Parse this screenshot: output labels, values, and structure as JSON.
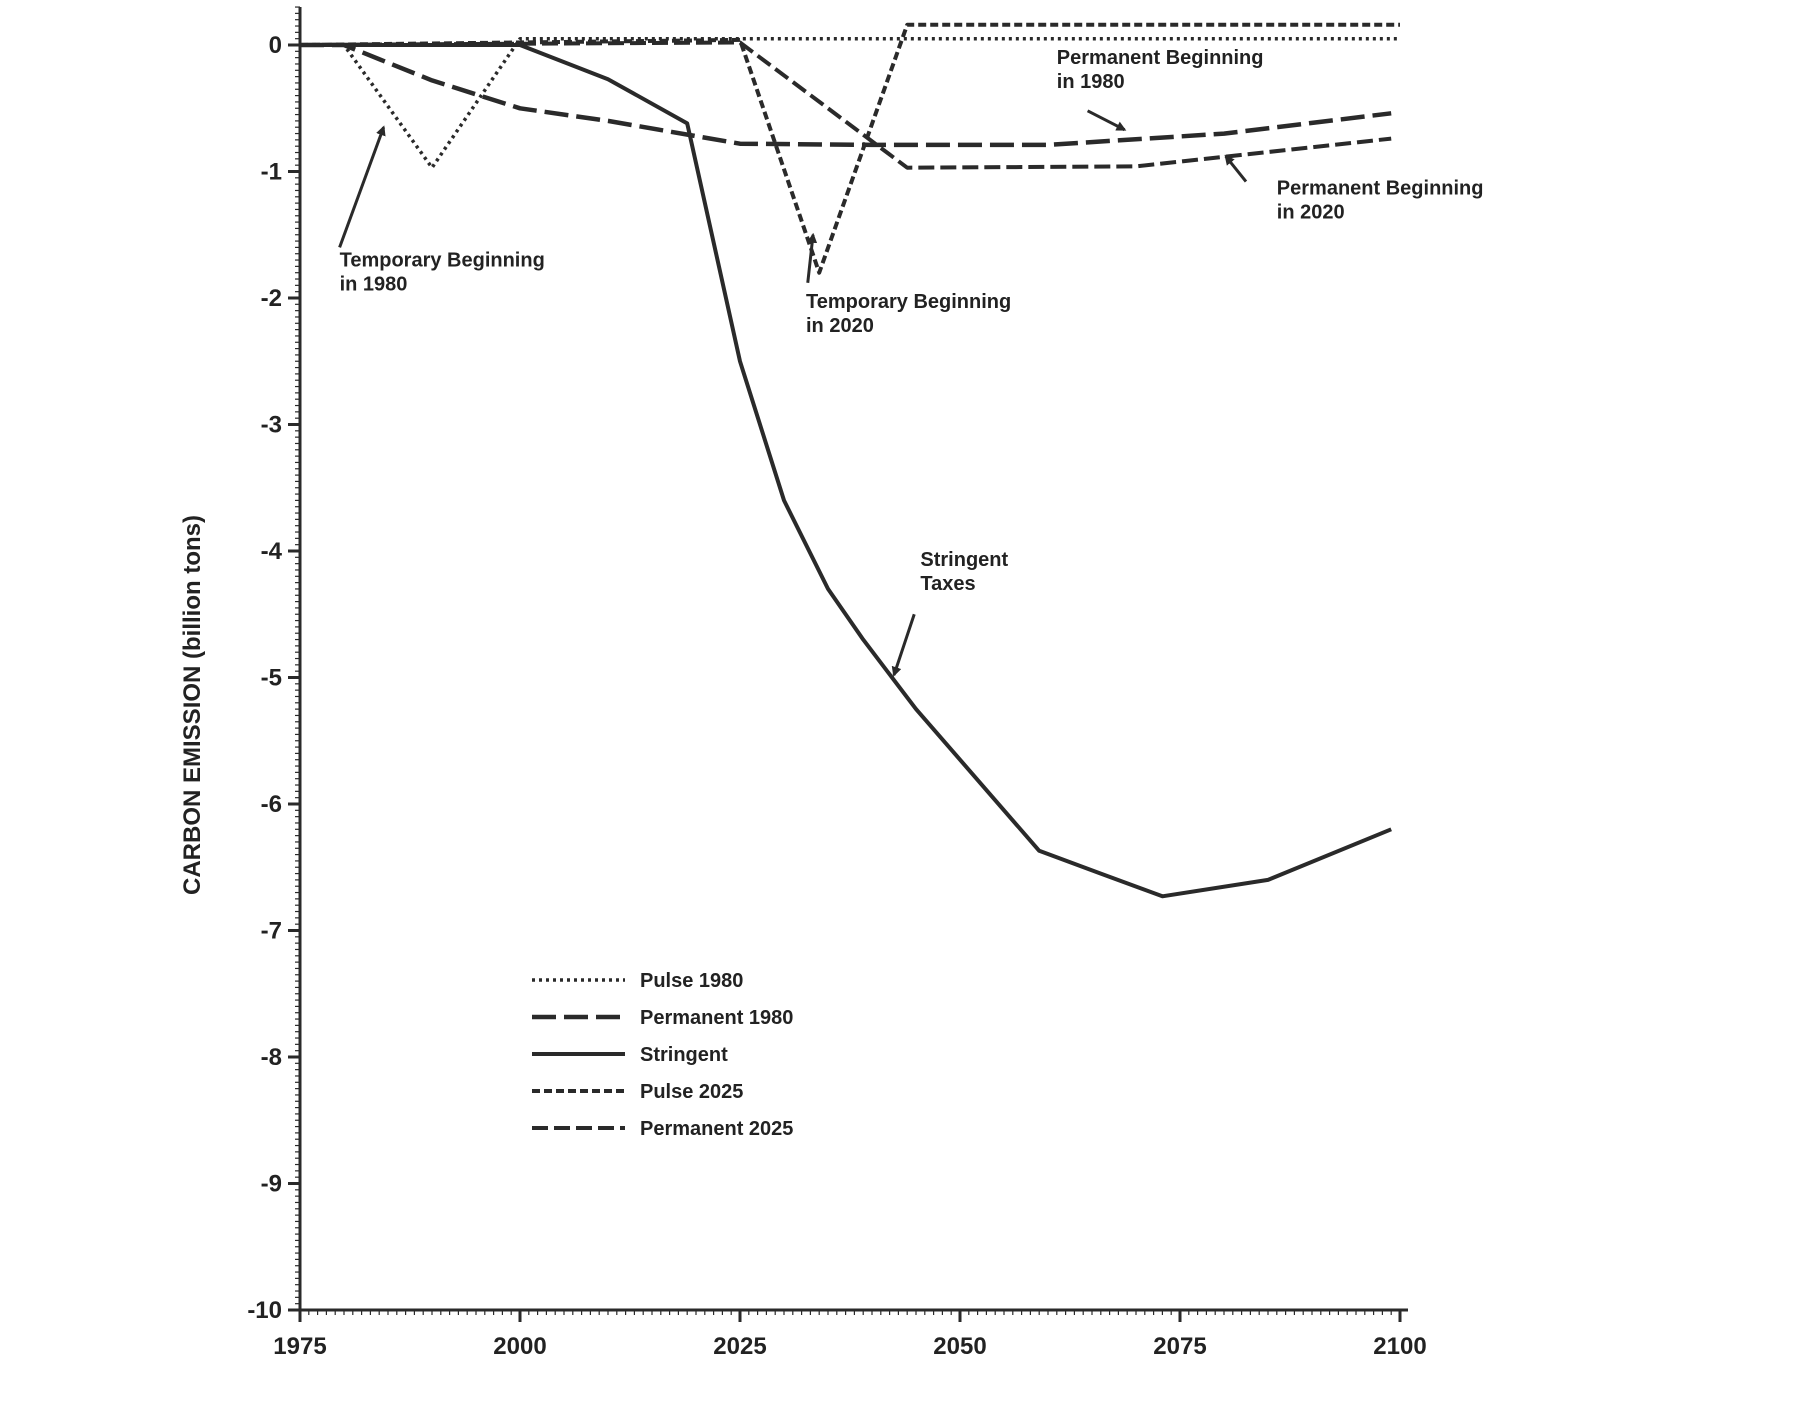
{
  "chart_data": {
    "type": "line",
    "title": "",
    "xlabel": "",
    "ylabel": "CARBON EMISSION (billion tons)",
    "xlim": [
      1975,
      2100
    ],
    "ylim": [
      -10,
      0.3
    ],
    "xticks": [
      1975,
      2000,
      2025,
      2050,
      2075,
      2100
    ],
    "yticks": [
      0,
      -1,
      -2,
      -3,
      -4,
      -5,
      -6,
      -7,
      -8,
      -9,
      -10
    ],
    "grid": false,
    "legend_position": "lower-left",
    "series": [
      {
        "name": "Pulse 1980",
        "style": "dotted",
        "x": [
          1975,
          1980,
          1990,
          2000,
          2100
        ],
        "y": [
          0,
          0,
          -0.97,
          0.05,
          0.05
        ]
      },
      {
        "name": "Permanent 1980",
        "style": "long-dash",
        "x": [
          1975,
          1980,
          1990,
          2000,
          2010,
          2020,
          2025,
          2040,
          2060,
          2080,
          2099
        ],
        "y": [
          0,
          0,
          -0.28,
          -0.5,
          -0.6,
          -0.72,
          -0.78,
          -0.79,
          -0.79,
          -0.7,
          -0.54
        ]
      },
      {
        "name": "Stringent",
        "style": "solid",
        "x": [
          1975,
          2000,
          2010,
          2019,
          2025,
          2030,
          2035,
          2039,
          2045,
          2050,
          2059,
          2066,
          2073,
          2085,
          2099
        ],
        "y": [
          0,
          0,
          -0.27,
          -0.62,
          -2.5,
          -3.6,
          -4.3,
          -4.7,
          -5.25,
          -5.65,
          -6.37,
          -6.55,
          -6.73,
          -6.6,
          -6.2
        ]
      },
      {
        "name": "Pulse 2025",
        "style": "short-dash",
        "x": [
          1975,
          2025,
          2034,
          2044,
          2100
        ],
        "y": [
          0,
          0.04,
          -1.8,
          0.16,
          0.16
        ]
      },
      {
        "name": "Permanent 2025",
        "style": "dash",
        "x": [
          1975,
          2025,
          2035,
          2044,
          2070,
          2099
        ],
        "y": [
          0,
          0.02,
          -0.5,
          -0.97,
          -0.96,
          -0.74
        ]
      }
    ],
    "annotations": [
      {
        "lines": [
          "Temporary Beginning",
          "in 1980"
        ],
        "x": 1979.5,
        "y": -1.75,
        "ax": 1984.5,
        "ay": -0.65,
        "tx": 1979.5,
        "ty": -1.6
      },
      {
        "lines": [
          "Temporary Beginning",
          "in 2020"
        ],
        "x": 2032.5,
        "y": -2.08,
        "ax": 2033.3,
        "ay": -1.5,
        "tx": 2032.7,
        "ty": -1.88
      },
      {
        "lines": [
          "Permanent Beginning",
          "in 1980"
        ],
        "x": 2061,
        "y": -0.15,
        "ax": 2068.7,
        "ay": -0.67,
        "tx": 2064.5,
        "ty": -0.52
      },
      {
        "lines": [
          "Permanent Beginning",
          "in 2020"
        ],
        "x": 2086,
        "y": -1.18,
        "ax": 2080.2,
        "ay": -0.88,
        "tx": 2082.5,
        "ty": -1.08
      },
      {
        "lines": [
          "Stringent",
          "Taxes"
        ],
        "x": 2045.5,
        "y": -4.12,
        "ax": 2042.5,
        "ay": -4.98,
        "tx": 2044.8,
        "ty": -4.5
      }
    ]
  }
}
